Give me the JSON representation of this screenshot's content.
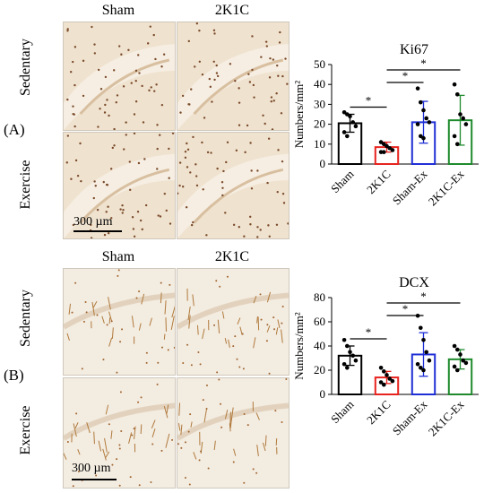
{
  "panels": [
    {
      "letter": "(A)",
      "col_labels": [
        "Sham",
        "2K1C"
      ],
      "row_labels": [
        "Sedentary",
        "Exercise"
      ],
      "scale_bar": "300 µm",
      "stain": "ki67",
      "chart_title": "Ki67"
    },
    {
      "letter": "(B)",
      "col_labels": [
        "Sham",
        "2K1C"
      ],
      "row_labels": [
        "Sedentary",
        "Exercise"
      ],
      "scale_bar": "300 µm",
      "stain": "dcx",
      "chart_title": "DCX"
    }
  ],
  "colors": {
    "Sham": "#000000",
    "2K1C": "#e8231f",
    "Sham-Ex": "#1f2fd6",
    "2K1C-Ex": "#1e8a2c"
  },
  "chart_data": [
    {
      "type": "bar",
      "title": "Ki67",
      "xlabel": "",
      "ylabel": "Numbers/mm²",
      "ylim": [
        0,
        50
      ],
      "yticks": [
        0,
        10,
        20,
        30,
        40,
        50
      ],
      "categories": [
        "Sham",
        "2K1C",
        "Sham-Ex",
        "2K1C-Ex"
      ],
      "values": [
        20.5,
        8.5,
        21,
        22
      ],
      "errors": [
        4.5,
        2.5,
        10.5,
        12.5
      ],
      "points": [
        [
          26,
          25,
          24,
          21,
          19,
          16,
          14
        ],
        [
          11,
          10,
          9,
          8,
          7,
          6,
          6
        ],
        [
          38,
          31,
          27,
          23,
          21,
          20,
          14,
          13
        ],
        [
          40,
          35,
          25,
          23,
          20,
          14,
          10
        ]
      ],
      "significance": [
        {
          "from": 0,
          "to": 1,
          "label": "*"
        },
        {
          "from": 1,
          "to": 2,
          "label": "*"
        },
        {
          "from": 1,
          "to": 3,
          "label": "*"
        }
      ]
    },
    {
      "type": "bar",
      "title": "DCX",
      "xlabel": "",
      "ylabel": "Numbers/mm²",
      "ylim": [
        0,
        80
      ],
      "yticks": [
        0,
        20,
        40,
        60,
        80
      ],
      "categories": [
        "Sham",
        "2K1C",
        "Sham-Ex",
        "2K1C-Ex"
      ],
      "values": [
        32,
        14,
        33,
        29
      ],
      "errors": [
        8,
        5,
        18,
        8
      ],
      "points": [
        [
          45,
          40,
          35,
          32,
          28,
          25,
          22
        ],
        [
          22,
          19,
          16,
          13,
          11,
          10,
          8
        ],
        [
          65,
          55,
          45,
          35,
          28,
          25,
          22,
          20
        ],
        [
          40,
          37,
          33,
          28,
          26,
          23,
          20
        ]
      ],
      "significance": [
        {
          "from": 0,
          "to": 1,
          "label": "*"
        },
        {
          "from": 1,
          "to": 2,
          "label": "*"
        },
        {
          "from": 1,
          "to": 3,
          "label": "*"
        }
      ]
    }
  ]
}
